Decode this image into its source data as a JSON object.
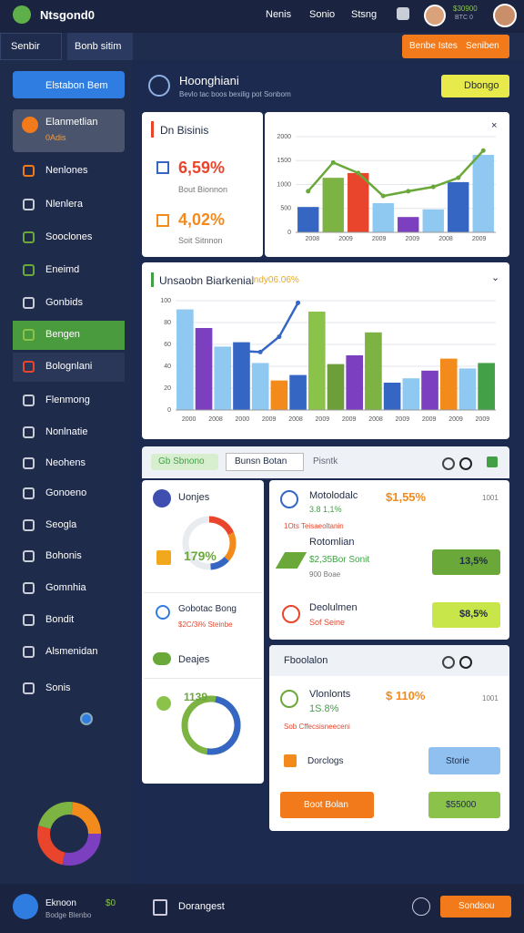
{
  "topbar": {
    "brand": "Ntsgond0",
    "nav": [
      "Nenis",
      "Sonio",
      "Stsng"
    ],
    "balance": "$30900",
    "balance_sub": "BTC 0"
  },
  "subbar": {
    "menu": "Senbir",
    "tab": "Bonb sitim",
    "button_a": "Benbe Istes",
    "button_b": "Seniben"
  },
  "sidebar": {
    "dropdown": "Elstabon Bem",
    "active": {
      "title": "Elanmetlian",
      "sub": "0Adis"
    },
    "items": [
      "Nenlones",
      "Nlenlera",
      "Sooclones",
      "Eneimd",
      "Gonbids",
      "Bengen",
      "Bolognlani",
      "Flenmong",
      "Nonlnatie",
      "Neohens",
      "Gonoeno",
      "Seogla",
      "Bohonis",
      "Gomnhia",
      "Bondit",
      "Alsmenidan",
      "Sonis"
    ],
    "footer": {
      "name": "Eknoon",
      "sub": "Bodge Blenbo",
      "badge": "$0"
    }
  },
  "header": {
    "title": "Hoonghiani",
    "subtitle": "Bevlo tac boos bexilig pot Sonbom",
    "button": "Dbongo"
  },
  "stats": {
    "title": "Dn Bisinis",
    "items": [
      {
        "value": "6,59%",
        "label": "Bout Bionnon"
      },
      {
        "value": "4,02%",
        "label": "Soit Sitnnon"
      }
    ]
  },
  "chart_top": {
    "ylim": [
      0,
      2000
    ],
    "yticks": [
      0,
      500,
      1000,
      1500,
      2000
    ],
    "x_labels": [
      "2008",
      "2009",
      "2009",
      "2009",
      "2008",
      "2009"
    ],
    "bars": [
      {
        "value": 530,
        "color": "#3566c4"
      },
      {
        "value": 1140,
        "color": "#7cb342"
      },
      {
        "value": 1240,
        "color": "#e8452c"
      },
      {
        "value": 610,
        "color": "#8fc8f0"
      },
      {
        "value": 320,
        "color": "#7b3fbf"
      },
      {
        "value": 480,
        "color": "#8fc8f0"
      },
      {
        "value": 1050,
        "color": "#3566c4"
      },
      {
        "value": 1620,
        "color": "#8fc8f0"
      }
    ],
    "line": {
      "color": "#6aa83a",
      "values": [
        860,
        1460,
        1240,
        760,
        860,
        950,
        1140,
        1710
      ]
    }
  },
  "chart_main": {
    "title": "Unsaobn Biarkenial",
    "badge": "Indy06.06%",
    "ylim": [
      0,
      100
    ],
    "yticks": [
      0,
      20,
      40,
      60,
      80,
      100
    ],
    "x_labels": [
      "2000",
      "2008",
      "2000",
      "2009",
      "2008",
      "2009",
      "2009",
      "2008",
      "2009",
      "2009",
      "2009",
      "2009"
    ],
    "bars": [
      {
        "value": 92,
        "color": "#8fc8f0"
      },
      {
        "value": 75,
        "color": "#7b3fbf"
      },
      {
        "value": 58,
        "color": "#8fc8f0"
      },
      {
        "value": 62,
        "color": "#3566c4"
      },
      {
        "value": 43,
        "color": "#8fc8f0"
      },
      {
        "value": 27,
        "color": "#f28a1c"
      },
      {
        "value": 32,
        "color": "#3566c4"
      },
      {
        "value": 90,
        "color": "#8bc34a"
      },
      {
        "value": 42,
        "color": "#6c9e3a"
      },
      {
        "value": 50,
        "color": "#7b3fbf"
      },
      {
        "value": 71,
        "color": "#7cb342"
      },
      {
        "value": 25,
        "color": "#3566c4"
      },
      {
        "value": 29,
        "color": "#8fc8f0"
      },
      {
        "value": 36,
        "color": "#7b3fbf"
      },
      {
        "value": 47,
        "color": "#f28a1c"
      },
      {
        "value": 38,
        "color": "#8fc8f0"
      },
      {
        "value": 43,
        "color": "#43a047"
      }
    ],
    "line": {
      "color": "#3566c4",
      "values": [
        null,
        null,
        null,
        54,
        53,
        67,
        98,
        null,
        null,
        null,
        null,
        null,
        null,
        null,
        null,
        null,
        null
      ]
    }
  },
  "toolbar": {
    "pill": "Gb Sbnono",
    "button": "Bunsn Botan",
    "link": "Pisntk"
  },
  "left_panel": {
    "title": "Uonjes",
    "gauge": "179%",
    "row": {
      "title": "Gobotac Bong",
      "sub": "$2C/3i% Steinbe"
    },
    "section": "Deajes",
    "donut": "1139"
  },
  "right_panel": {
    "rows": [
      {
        "title": "Motolodalc",
        "value": "$1,55%",
        "sub": "3.8 1,1%",
        "note": "1Ots Teisaeoltanin",
        "meta": "1001"
      },
      {
        "title": "Rotomlian",
        "sub": "$2,35Bor Sonit",
        "note": "900 Boae",
        "badge": "13,5%"
      },
      {
        "title": "Deolulmen",
        "sub": "Sof Seine",
        "badge": "$8,5%"
      }
    ]
  },
  "lower_panel": {
    "title": "Fboolalon",
    "row": {
      "title": "Vlonlonts",
      "value": "$ 110%",
      "sub": "1S.8%",
      "note": "Sob Cffecsisneeceni",
      "meta": "1001"
    },
    "label": "Dorclogs",
    "select_a": "Storie",
    "select_b": "Boot Bolan",
    "select_c": "$55000"
  },
  "bottombar": {
    "label": "Dorangest",
    "button": "Sondsou"
  }
}
